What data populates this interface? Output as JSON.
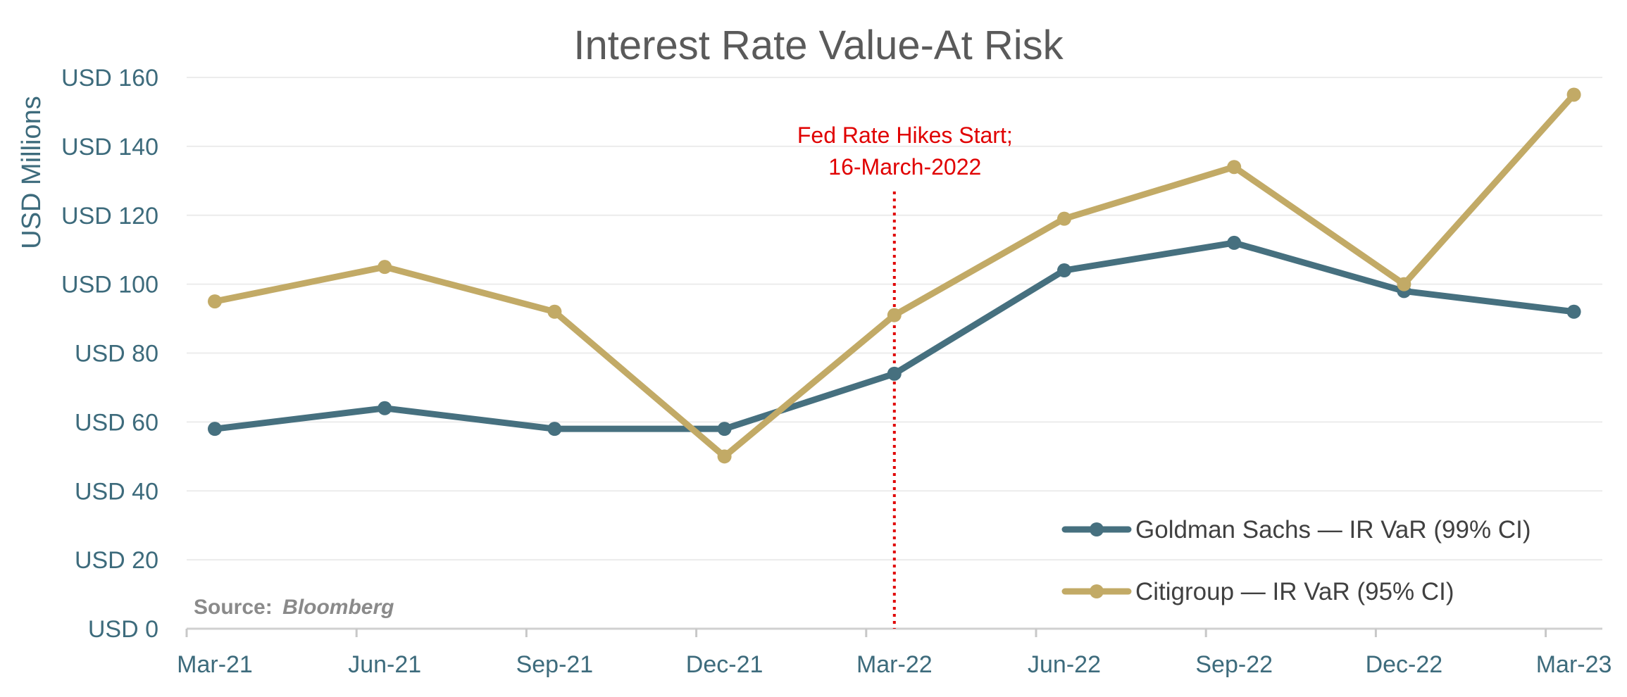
{
  "chart_data": {
    "type": "line",
    "title": "Interest Rate Value-At Risk",
    "ylabel": "USD Millions",
    "xlabel": "",
    "ylim": [
      0,
      160
    ],
    "y_ticks": [
      "USD 0",
      "USD 20",
      "USD 40",
      "USD 60",
      "USD 80",
      "USD 100",
      "USD 120",
      "USD 140",
      "USD 160"
    ],
    "y_tick_values": [
      0,
      20,
      40,
      60,
      80,
      100,
      120,
      140,
      160
    ],
    "categories": [
      "Mar-21",
      "Jun-21",
      "Sep-21",
      "Dec-21",
      "Mar-22",
      "Jun-22",
      "Sep-22",
      "Dec-22",
      "Mar-23"
    ],
    "grid": true,
    "legend_position": "bottom-right",
    "series": [
      {
        "name": "Goldman Sachs — IR VaR (99% CI)",
        "color": "#46707f",
        "values": [
          58,
          64,
          58,
          58,
          74,
          104,
          112,
          98,
          92
        ]
      },
      {
        "name": "Citigroup — IR VaR (95% CI)",
        "color": "#c2aa66",
        "values": [
          95,
          105,
          92,
          50,
          91,
          119,
          134,
          100,
          155
        ]
      }
    ],
    "annotation": {
      "lines": [
        "Fed Rate Hikes Start;",
        "16-March-2022"
      ],
      "date": "2022-03-16",
      "color": "#e00000"
    },
    "source": {
      "label": "Source:",
      "value": "Bloomberg"
    }
  }
}
